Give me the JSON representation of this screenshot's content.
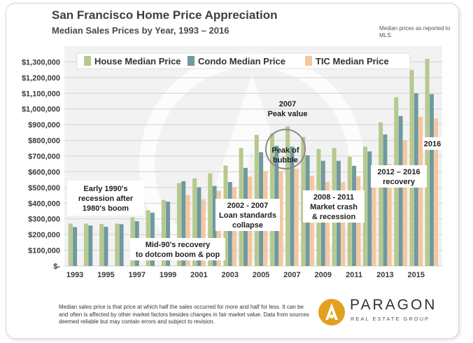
{
  "header": {
    "title": "San Francisco Home Price Appreciation",
    "subtitle": "Median Sales Prices by Year, 1993 – 2016",
    "source_note": "Median prices as reported to MLS."
  },
  "colors": {
    "house": "#b6c98e",
    "condo": "#6f9a9e",
    "tic": "#f5c6a0",
    "brand": "#e2a021"
  },
  "chart_data": {
    "type": "bar",
    "categories": [
      "1993",
      "1994",
      "1995",
      "1996",
      "1997",
      "1998",
      "1999",
      "2000",
      "2001",
      "2002",
      "2003",
      "2004",
      "2005",
      "2006",
      "2007",
      "2008",
      "2009",
      "2010",
      "2011",
      "2012",
      "2013",
      "2014",
      "2015",
      "2016"
    ],
    "x_tick_labels": [
      "1993",
      "1995",
      "1997",
      "1999",
      "2001",
      "2003",
      "2005",
      "2007",
      "2009",
      "2011",
      "2013",
      "2015"
    ],
    "series": [
      {
        "name": "House Median Price",
        "values": [
          270000,
          270000,
          268000,
          270000,
          310000,
          355000,
          420000,
          528000,
          558000,
          590000,
          640000,
          752000,
          835000,
          845000,
          890000,
          822000,
          745000,
          752000,
          695000,
          760000,
          915000,
          1075000,
          1250000,
          1320000
        ]
      },
      {
        "name": "Condo Median Price",
        "values": [
          248000,
          258000,
          250000,
          266000,
          285000,
          340000,
          410000,
          540000,
          502000,
          510000,
          535000,
          625000,
          725000,
          765000,
          760000,
          705000,
          670000,
          670000,
          638000,
          730000,
          838000,
          955000,
          1100000,
          1095000
        ]
      },
      {
        "name": "TIC Median Price",
        "values": [
          null,
          null,
          null,
          null,
          null,
          null,
          null,
          452000,
          425000,
          480000,
          502000,
          570000,
          605000,
          605000,
          620000,
          575000,
          535000,
          535000,
          572000,
          605000,
          650000,
          800000,
          950000,
          940000
        ]
      }
    ],
    "y_tick_labels": [
      "$-",
      "$100,000",
      "$200,000",
      "$300,000",
      "$400,000",
      "$500,000",
      "$600,000",
      "$700,000",
      "$800,000",
      "$900,000",
      "$1,000,000",
      "$1,100,000",
      "$1,200,000",
      "$1,300,000"
    ],
    "ylim": [
      0,
      1400000
    ],
    "grid": true,
    "legend": "top-left",
    "annotations": [
      {
        "id": "early90s",
        "lines": [
          "Early 1990's",
          "recession after",
          "1980's boom"
        ]
      },
      {
        "id": "mid90s",
        "lines": [
          "Mid-90's recovery",
          "to dotcom boom & pop"
        ]
      },
      {
        "id": "loanstd",
        "lines": [
          "2002 - 2007",
          "Loan standards",
          "collapse"
        ]
      },
      {
        "id": "peak2007",
        "lines": [
          "2007",
          "Peak value"
        ]
      },
      {
        "id": "peakbubble",
        "lines": [
          "Peak of",
          "bubble"
        ]
      },
      {
        "id": "crash",
        "lines": [
          "2008 - 2011",
          "Market crash",
          "& recession"
        ]
      },
      {
        "id": "recovery",
        "lines": [
          "2012 – 2016",
          "recovery"
        ]
      },
      {
        "id": "y2016",
        "lines": [
          "2016"
        ]
      }
    ]
  },
  "footer": {
    "disclaimer": "Median sales price is that price at which half the sales occurred for more and half for less. It can be and often is affected by other market factors besides changes in fair market value. Data from sources deemed reliable but may contain errors and subject to revision.",
    "brand_name": "PARAGON",
    "brand_sub": "REAL ESTATE GROUP"
  }
}
